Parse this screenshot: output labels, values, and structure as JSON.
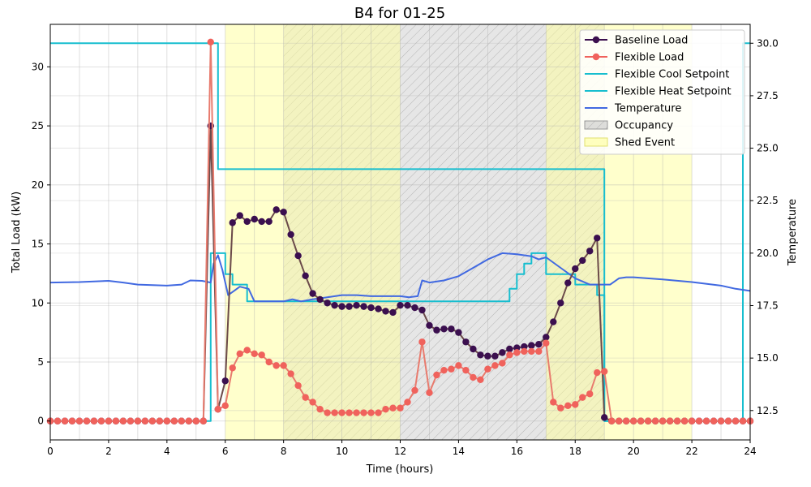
{
  "chart_data": {
    "type": "line",
    "title": "B4 for 01-25",
    "xlabel": "Time (hours)",
    "ylabel": "Total Load (kW)",
    "y2label": "Temperature",
    "xlim": [
      0,
      24
    ],
    "ylim": [
      -1.6,
      33.6
    ],
    "y2lim": [
      11.1,
      30.9
    ],
    "xticks": [
      "0",
      "2",
      "4",
      "6",
      "8",
      "10",
      "12",
      "14",
      "16",
      "18",
      "20",
      "22",
      "24"
    ],
    "yticks": [
      "0",
      "5",
      "10",
      "15",
      "20",
      "25",
      "30"
    ],
    "y2ticks": [
      "12.5",
      "15.0",
      "17.5",
      "20.0",
      "22.5",
      "25.0",
      "27.5",
      "30.0"
    ],
    "grid": true,
    "legend_position": "top-right",
    "colors": {
      "baseline": "#3b0f4f",
      "baseline_line": "#6b4a4a",
      "flexible": "#f0625c",
      "flexible_line": "#e87b6e",
      "setpoint": "#17becf",
      "temperature": "#4169e1",
      "occupancy": "#c8c8c8",
      "shed": "#ffff99"
    },
    "shaded_regions": {
      "occupancy": [
        [
          8,
          19
        ]
      ],
      "shed": [
        [
          6,
          12
        ],
        [
          17,
          22
        ]
      ]
    },
    "legend": [
      {
        "label": "Baseline Load",
        "key": "baseline",
        "kind": "marker-line"
      },
      {
        "label": "Flexible Load",
        "key": "flexible",
        "kind": "marker-line"
      },
      {
        "label": "Flexible Cool Setpoint",
        "key": "cool",
        "kind": "line"
      },
      {
        "label": "Flexible Heat Setpoint",
        "key": "heat",
        "kind": "line"
      },
      {
        "label": "Temperature",
        "key": "temperature",
        "kind": "line"
      },
      {
        "label": "Occupancy",
        "key": "occupancy",
        "kind": "patch-hatch"
      },
      {
        "label": "Shed Event",
        "key": "shed",
        "kind": "patch"
      }
    ],
    "series": [
      {
        "name": "Baseline Load",
        "axis": "left",
        "x": [
          0,
          0.25,
          0.5,
          0.75,
          1,
          1.25,
          1.5,
          1.75,
          2,
          2.25,
          2.5,
          2.75,
          3,
          3.25,
          3.5,
          3.75,
          4,
          4.25,
          4.5,
          4.75,
          5,
          5.25,
          5.5,
          5.75,
          6,
          6.25,
          6.5,
          6.75,
          7,
          7.25,
          7.5,
          7.75,
          8,
          8.25,
          8.5,
          8.75,
          9,
          9.25,
          9.5,
          9.75,
          10,
          10.25,
          10.5,
          10.75,
          11,
          11.25,
          11.5,
          11.75,
          12,
          12.25,
          12.5,
          12.75,
          13,
          13.25,
          13.5,
          13.75,
          14,
          14.25,
          14.5,
          14.75,
          15,
          15.25,
          15.5,
          15.75,
          16,
          16.25,
          16.5,
          16.75,
          17,
          17.25,
          17.5,
          17.75,
          18,
          18.25,
          18.5,
          18.75,
          19,
          19.25,
          19.5,
          19.75,
          20,
          20.25,
          20.5,
          20.75,
          21,
          21.25,
          21.5,
          21.75,
          22,
          22.25,
          22.5,
          22.75,
          23,
          23.25,
          23.5,
          23.75,
          24
        ],
        "values": [
          0,
          0,
          0,
          0,
          0,
          0,
          0,
          0,
          0,
          0,
          0,
          0,
          0,
          0,
          0,
          0,
          0,
          0,
          0,
          0,
          0,
          0,
          25,
          1.0,
          3.4,
          16.8,
          17.4,
          16.9,
          17.1,
          16.9,
          16.9,
          17.9,
          17.7,
          15.8,
          14.0,
          12.3,
          10.8,
          10.3,
          10.0,
          9.8,
          9.7,
          9.7,
          9.8,
          9.7,
          9.6,
          9.5,
          9.3,
          9.2,
          9.8,
          9.8,
          9.6,
          9.4,
          8.1,
          7.7,
          7.8,
          7.8,
          7.5,
          6.7,
          6.1,
          5.6,
          5.5,
          5.5,
          5.8,
          6.1,
          6.2,
          6.3,
          6.4,
          6.5,
          7.1,
          8.4,
          10.0,
          11.7,
          12.9,
          13.6,
          14.4,
          15.5,
          0.3,
          0,
          0,
          0,
          0,
          0,
          0,
          0,
          0,
          0,
          0,
          0,
          0,
          0,
          0,
          0,
          0,
          0,
          0,
          0,
          0
        ]
      },
      {
        "name": "Flexible Load",
        "axis": "left",
        "x": [
          0,
          0.25,
          0.5,
          0.75,
          1,
          1.25,
          1.5,
          1.75,
          2,
          2.25,
          2.5,
          2.75,
          3,
          3.25,
          3.5,
          3.75,
          4,
          4.25,
          4.5,
          4.75,
          5,
          5.25,
          5.5,
          5.75,
          6,
          6.25,
          6.5,
          6.75,
          7,
          7.25,
          7.5,
          7.75,
          8,
          8.25,
          8.5,
          8.75,
          9,
          9.25,
          9.5,
          9.75,
          10,
          10.25,
          10.5,
          10.75,
          11,
          11.25,
          11.5,
          11.75,
          12,
          12.25,
          12.5,
          12.75,
          13,
          13.25,
          13.5,
          13.75,
          14,
          14.25,
          14.5,
          14.75,
          15,
          15.25,
          15.5,
          15.75,
          16,
          16.25,
          16.5,
          16.75,
          17,
          17.25,
          17.5,
          17.75,
          18,
          18.25,
          18.5,
          18.75,
          19,
          19.25,
          19.5,
          19.75,
          20,
          20.25,
          20.5,
          20.75,
          21,
          21.25,
          21.5,
          21.75,
          22,
          22.25,
          22.5,
          22.75,
          23,
          23.25,
          23.5,
          23.75,
          24
        ],
        "values": [
          0,
          0,
          0,
          0,
          0,
          0,
          0,
          0,
          0,
          0,
          0,
          0,
          0,
          0,
          0,
          0,
          0,
          0,
          0,
          0,
          0,
          0,
          32.1,
          1.0,
          1.3,
          4.5,
          5.7,
          6.0,
          5.7,
          5.6,
          5.0,
          4.7,
          4.7,
          4.0,
          3.0,
          2.0,
          1.6,
          1.0,
          0.7,
          0.7,
          0.7,
          0.7,
          0.7,
          0.7,
          0.7,
          0.7,
          1.0,
          1.1,
          1.1,
          1.6,
          2.6,
          6.7,
          2.4,
          3.9,
          4.3,
          4.4,
          4.7,
          4.3,
          3.7,
          3.5,
          4.4,
          4.7,
          4.9,
          5.6,
          5.8,
          5.9,
          5.9,
          5.9,
          6.6,
          1.6,
          1.1,
          1.3,
          1.4,
          2.0,
          2.3,
          4.1,
          4.2,
          0,
          0,
          0,
          0,
          0,
          0,
          0,
          0,
          0,
          0,
          0,
          0,
          0,
          0,
          0,
          0,
          0,
          0,
          0,
          0
        ]
      },
      {
        "name": "Flexible Cool Setpoint",
        "axis": "right",
        "points": [
          [
            0,
            30
          ],
          [
            5.75,
            30
          ],
          [
            5.75,
            24
          ],
          [
            19.0,
            24
          ],
          [
            19.0,
            12
          ],
          [
            23.75,
            12
          ],
          [
            23.75,
            30
          ],
          [
            24,
            30
          ]
        ]
      },
      {
        "name": "Flexible Heat Setpoint",
        "axis": "right",
        "points": [
          [
            0,
            12
          ],
          [
            5.5,
            12
          ],
          [
            5.5,
            20
          ],
          [
            6.0,
            20
          ],
          [
            6.0,
            19
          ],
          [
            6.25,
            19
          ],
          [
            6.25,
            18.5
          ],
          [
            6.75,
            18.5
          ],
          [
            6.75,
            17.7
          ],
          [
            15.75,
            17.7
          ],
          [
            15.75,
            18.3
          ],
          [
            16.0,
            18.3
          ],
          [
            16.0,
            19.0
          ],
          [
            16.25,
            19.0
          ],
          [
            16.25,
            19.5
          ],
          [
            16.5,
            19.5
          ],
          [
            16.5,
            20.0
          ],
          [
            17.0,
            20.0
          ],
          [
            17.0,
            19.0
          ],
          [
            18.0,
            19.0
          ],
          [
            18.0,
            18.5
          ],
          [
            18.75,
            18.5
          ],
          [
            18.75,
            18.0
          ],
          [
            19.0,
            18.0
          ],
          [
            19.0,
            12
          ],
          [
            24,
            12
          ]
        ]
      },
      {
        "name": "Temperature",
        "axis": "right",
        "points": [
          [
            0,
            18.6
          ],
          [
            1,
            18.62
          ],
          [
            2,
            18.68
          ],
          [
            2.5,
            18.6
          ],
          [
            3,
            18.5
          ],
          [
            4,
            18.45
          ],
          [
            4.5,
            18.5
          ],
          [
            4.8,
            18.7
          ],
          [
            5.2,
            18.68
          ],
          [
            5.5,
            18.6
          ],
          [
            5.6,
            19.5
          ],
          [
            5.75,
            19.9
          ],
          [
            5.9,
            19.2
          ],
          [
            6.1,
            18.0
          ],
          [
            6.3,
            18.2
          ],
          [
            6.5,
            18.4
          ],
          [
            6.8,
            18.3
          ],
          [
            7.0,
            17.7
          ],
          [
            8.0,
            17.7
          ],
          [
            8.3,
            17.8
          ],
          [
            8.6,
            17.7
          ],
          [
            9.0,
            17.8
          ],
          [
            9.5,
            17.9
          ],
          [
            10,
            18.0
          ],
          [
            10.5,
            18.0
          ],
          [
            11,
            17.95
          ],
          [
            11.5,
            17.95
          ],
          [
            12,
            17.95
          ],
          [
            12.3,
            17.9
          ],
          [
            12.6,
            17.95
          ],
          [
            12.75,
            18.7
          ],
          [
            13,
            18.6
          ],
          [
            13.5,
            18.7
          ],
          [
            14,
            18.9
          ],
          [
            14.5,
            19.3
          ],
          [
            15,
            19.7
          ],
          [
            15.5,
            20.0
          ],
          [
            16,
            19.95
          ],
          [
            16.5,
            19.85
          ],
          [
            16.75,
            19.7
          ],
          [
            17,
            19.8
          ],
          [
            17.5,
            19.3
          ],
          [
            18,
            18.8
          ],
          [
            18.5,
            18.5
          ],
          [
            18.9,
            18.5
          ],
          [
            19.2,
            18.5
          ],
          [
            19.5,
            18.8
          ],
          [
            19.75,
            18.85
          ],
          [
            20,
            18.85
          ],
          [
            21,
            18.75
          ],
          [
            22,
            18.62
          ],
          [
            23,
            18.45
          ],
          [
            23.5,
            18.3
          ],
          [
            24,
            18.2
          ]
        ]
      }
    ]
  }
}
